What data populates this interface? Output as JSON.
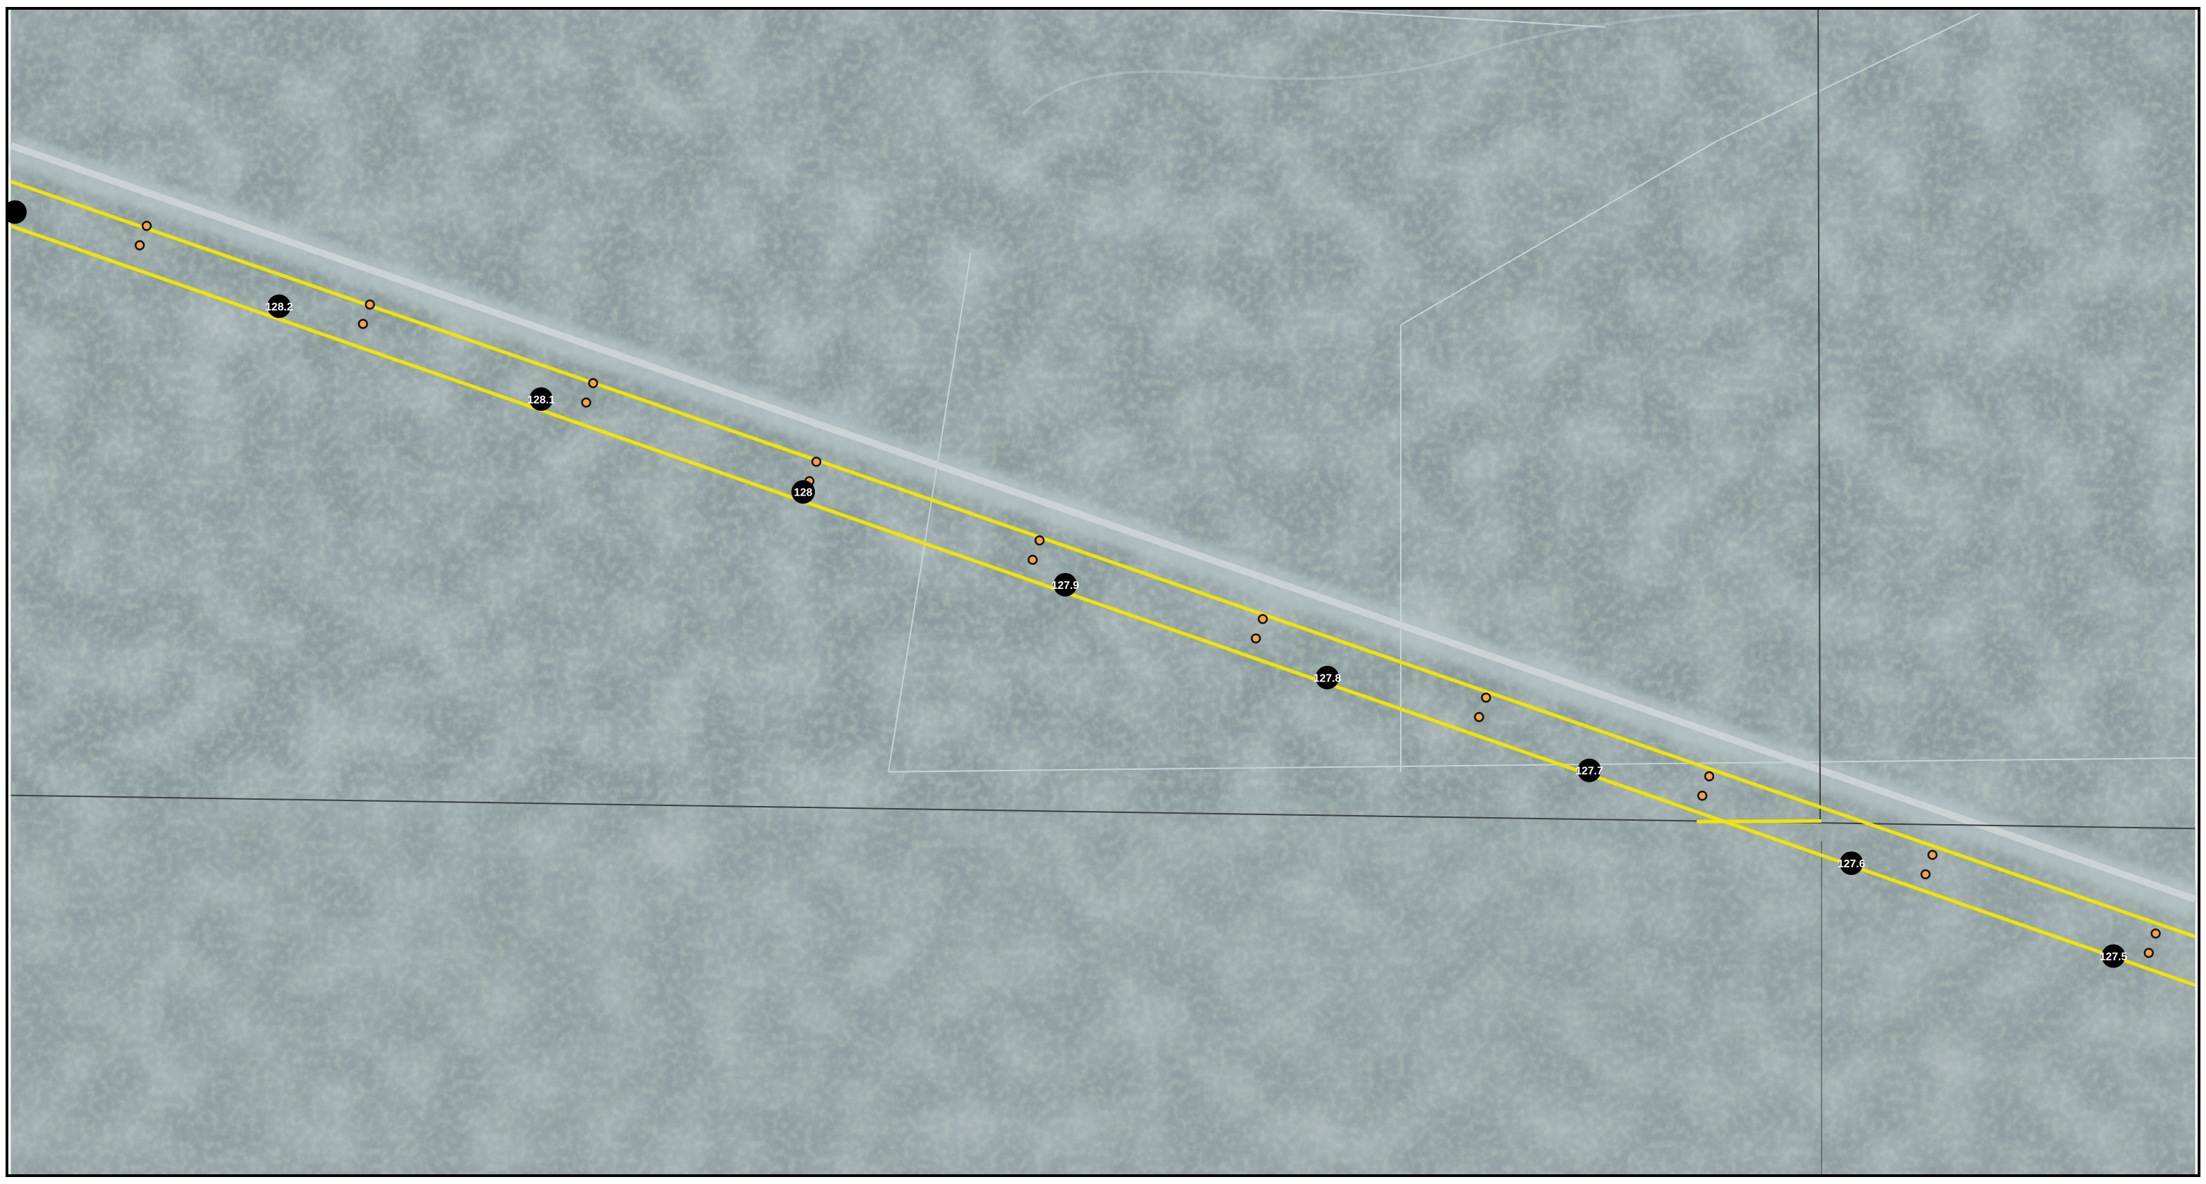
{
  "map": {
    "colors": {
      "imagery_base": "#8c9c9e",
      "forest_dark": "#5f7468",
      "forest_mid": "#7b8c88",
      "forest_light": "#a4b0b1",
      "road_clearing": "#b8c4c6",
      "row_boundary": "#f2e400",
      "parcel_line": "#c9d3d6",
      "section_line": "#3b3f40",
      "milepost_fill": "#000000",
      "milepost_text": "#ffffff",
      "marker_fill": "#f4a24a",
      "marker_stroke": "#111111"
    },
    "mileposts": [
      {
        "label": "128.2"
      },
      {
        "label": "128.1"
      },
      {
        "label": "128"
      },
      {
        "label": "127.9"
      },
      {
        "label": "127.8"
      },
      {
        "label": "127.7"
      },
      {
        "label": "127.6"
      },
      {
        "label": "127.5"
      }
    ]
  }
}
